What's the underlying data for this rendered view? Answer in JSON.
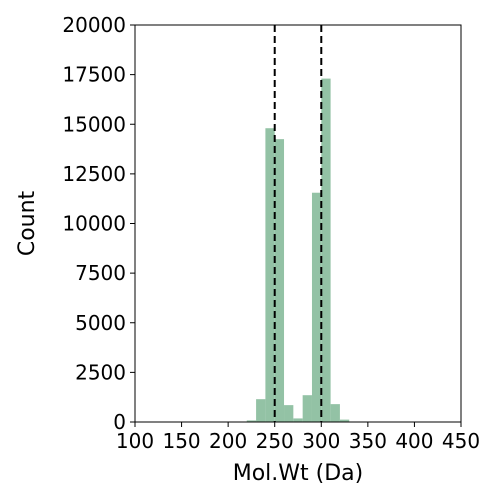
{
  "chart_data": {
    "type": "bar",
    "subtype": "histogram",
    "title": "",
    "xlabel": "Mol.Wt (Da)",
    "ylabel": "Count",
    "xlim": [
      100,
      450
    ],
    "ylim": [
      0,
      20000
    ],
    "xticks": [
      100,
      150,
      200,
      250,
      300,
      350,
      400,
      450
    ],
    "yticks": [
      0,
      2500,
      5000,
      7500,
      10000,
      12500,
      15000,
      17500,
      20000
    ],
    "bar_color": "#93c2a5",
    "bins": [
      {
        "x0": 220,
        "x1": 230,
        "value": 80
      },
      {
        "x0": 230,
        "x1": 240,
        "value": 1150
      },
      {
        "x0": 240,
        "x1": 250,
        "value": 14800
      },
      {
        "x0": 250,
        "x1": 260,
        "value": 14250
      },
      {
        "x0": 260,
        "x1": 270,
        "value": 850
      },
      {
        "x0": 270,
        "x1": 280,
        "value": 180
      },
      {
        "x0": 280,
        "x1": 290,
        "value": 1350
      },
      {
        "x0": 290,
        "x1": 300,
        "value": 11550
      },
      {
        "x0": 300,
        "x1": 310,
        "value": 17300
      },
      {
        "x0": 310,
        "x1": 320,
        "value": 900
      },
      {
        "x0": 320,
        "x1": 330,
        "value": 120
      }
    ],
    "reference_lines": [
      {
        "x": 250,
        "style": "dashed",
        "color": "#000000"
      },
      {
        "x": 300,
        "style": "dashed",
        "color": "#000000"
      }
    ],
    "grid": false,
    "legend": "none"
  }
}
